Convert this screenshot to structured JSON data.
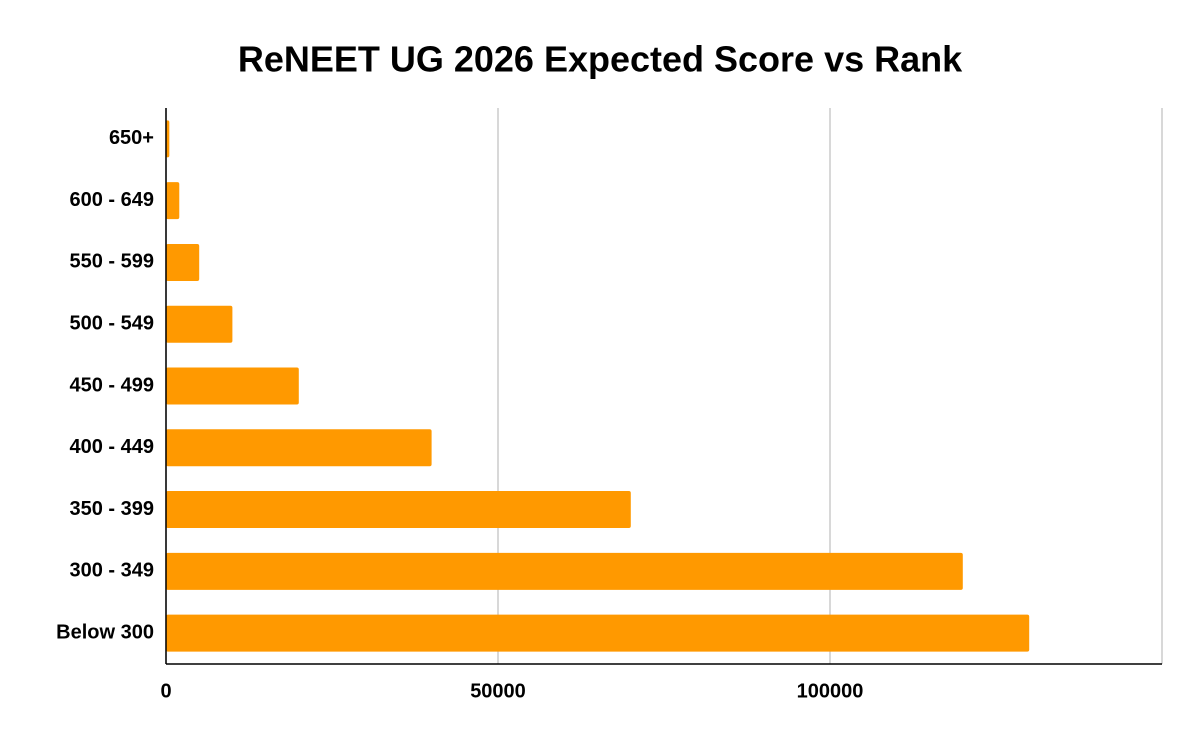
{
  "chart_data": {
    "type": "bar",
    "orientation": "horizontal",
    "title": "ReNEET UG 2026 Expected Score vs Rank",
    "categories": [
      "650+",
      "600 - 649",
      "550 - 599",
      "500 - 549",
      "450 - 499",
      "400 - 449",
      "350 - 399",
      "300 - 349",
      "Below 300"
    ],
    "values": [
      500,
      2000,
      5000,
      10000,
      20000,
      40000,
      70000,
      120000,
      130000
    ],
    "color": "#ff9900",
    "xlim": [
      0,
      150000
    ],
    "xticks": [
      0,
      50000,
      100000
    ],
    "grid": true
  }
}
